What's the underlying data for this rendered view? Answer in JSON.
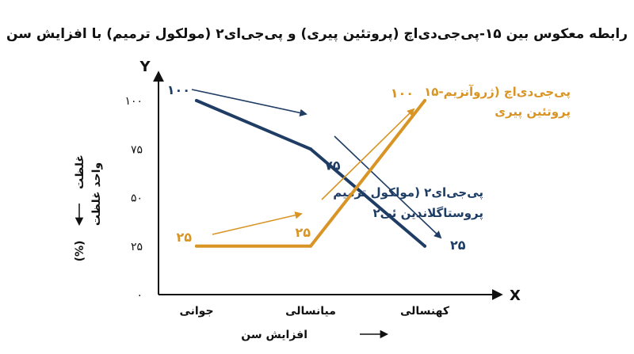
{
  "chart_data": {
    "type": "line",
    "title": "رابطه معکوس بین ۱۵-پی‌جی‌دی‌اچ (پروتئین پیری) و پی‌جی‌ای۲ (مولکول ترمیم) با افزایش سن",
    "x_axis_letter": "X",
    "y_axis_letter": "Y",
    "xlabel": "افزایش سن",
    "ylabel_line1": "واحد غلظت",
    "ylabel_word": "غلظت",
    "ylabel_unit": "(%)",
    "categories": [
      "جوانی",
      "میانسالی",
      "کهنسالی"
    ],
    "y_ticks": [
      0,
      25,
      50,
      75,
      100
    ],
    "y_tick_labels": [
      "۰",
      "۲۵",
      "۵۰",
      "۷۵",
      "۱۰۰"
    ],
    "ylim": [
      0,
      100
    ],
    "grid": false,
    "series": [
      {
        "name_line1": "پی‌جی‌ای۲ (مولکول ترمیم",
        "name_line2": "پروستاگلاندین ئی۲",
        "values": [
          100,
          75,
          25
        ],
        "value_labels": [
          "۱۰۰",
          "۷۵",
          "۲۵"
        ],
        "color": "#1f3d64"
      },
      {
        "name_line1": "۱۵-پی‌جی‌دی‌اچ (ژروآنزیم",
        "name_line2": "پروتئین پیری",
        "values": [
          25,
          25,
          100
        ],
        "value_labels": [
          "۲۵",
          "۲۵",
          "۱۰۰"
        ],
        "color": "#d89526"
      }
    ]
  }
}
